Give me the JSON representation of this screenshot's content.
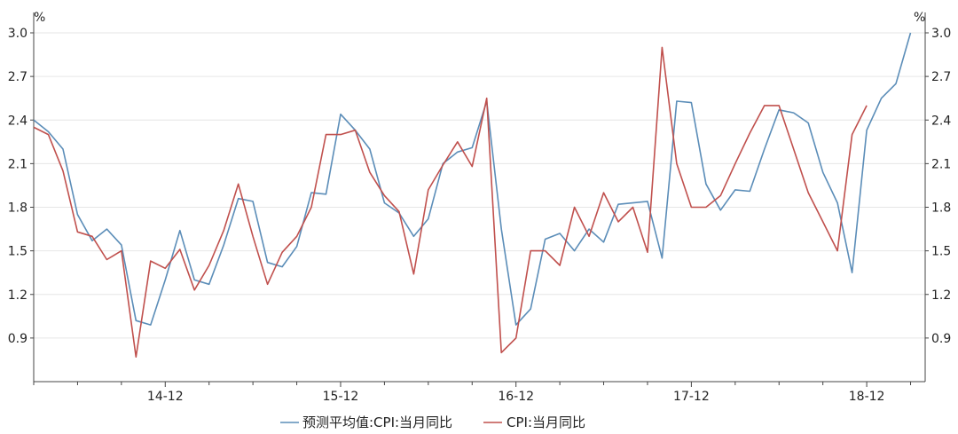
{
  "chart_data": {
    "type": "line",
    "title": "",
    "left_unit": "%",
    "right_unit": "%",
    "ylim": [
      0.6,
      3.0
    ],
    "yticks": [
      0.9,
      1.2,
      1.5,
      1.8,
      2.1,
      2.4,
      2.7,
      3.0
    ],
    "ytick_labels": [
      "0.9",
      "1.2",
      "1.5",
      "1.8",
      "2.1",
      "2.4",
      "2.7",
      "3.0"
    ],
    "x_start": "2014-03",
    "x_end": "2019-04",
    "xtick_labels": [
      "14-12",
      "15-12",
      "16-12",
      "17-12",
      "18-12"
    ],
    "xtick_months": [
      "2014-12",
      "2015-12",
      "2016-12",
      "2017-12",
      "2018-12"
    ],
    "grid": true,
    "legend_position": "bottom",
    "series": [
      {
        "name": "预测平均值:CPI:当月同比",
        "color": "#5b8db8",
        "months": [
          "2014-03",
          "2014-04",
          "2014-05",
          "2014-06",
          "2014-07",
          "2014-08",
          "2014-09",
          "2014-10",
          "2014-11",
          "2014-12",
          "2015-01",
          "2015-02",
          "2015-03",
          "2015-04",
          "2015-05",
          "2015-06",
          "2015-07",
          "2015-08",
          "2015-09",
          "2015-10",
          "2015-11",
          "2015-12",
          "2016-01",
          "2016-02",
          "2016-03",
          "2016-04",
          "2016-05",
          "2016-06",
          "2016-07",
          "2016-08",
          "2016-09",
          "2016-10",
          "2016-11",
          "2016-12",
          "2017-01",
          "2017-02",
          "2017-03",
          "2017-04",
          "2017-05",
          "2017-06",
          "2017-07",
          "2017-08",
          "2017-09",
          "2017-10",
          "2017-11",
          "2017-12",
          "2018-01",
          "2018-02",
          "2018-03",
          "2018-04",
          "2018-05",
          "2018-06",
          "2018-07",
          "2018-08",
          "2018-09",
          "2018-10",
          "2018-11",
          "2018-12",
          "2019-01",
          "2019-02",
          "2019-03",
          "2019-04"
        ],
        "values": [
          2.4,
          2.32,
          2.2,
          1.75,
          1.57,
          1.65,
          1.54,
          1.02,
          0.99,
          1.3,
          1.64,
          1.3,
          1.27,
          1.54,
          1.86,
          1.84,
          1.42,
          1.39,
          1.53,
          1.9,
          1.89,
          2.44,
          2.33,
          2.2,
          1.83,
          1.76,
          1.6,
          1.72,
          2.1,
          2.18,
          2.21,
          2.53,
          1.65,
          0.99,
          1.1,
          1.58,
          1.62,
          1.5,
          1.65,
          1.56,
          1.82,
          1.83,
          1.84,
          1.45,
          2.53,
          2.52,
          1.96,
          1.78,
          1.92,
          1.91,
          2.2,
          2.47,
          2.45,
          2.38,
          2.04,
          1.83,
          1.35,
          2.33,
          2.55,
          2.65,
          3.0,
          null
        ]
      },
      {
        "name": "CPI:当月同比",
        "color": "#c0504d",
        "months": [
          "2014-03",
          "2014-04",
          "2014-05",
          "2014-06",
          "2014-07",
          "2014-08",
          "2014-09",
          "2014-10",
          "2014-11",
          "2014-12",
          "2015-01",
          "2015-02",
          "2015-03",
          "2015-04",
          "2015-05",
          "2015-06",
          "2015-07",
          "2015-08",
          "2015-09",
          "2015-10",
          "2015-11",
          "2015-12",
          "2016-01",
          "2016-02",
          "2016-03",
          "2016-04",
          "2016-05",
          "2016-06",
          "2016-07",
          "2016-08",
          "2016-09",
          "2016-10",
          "2016-11",
          "2016-12",
          "2017-01",
          "2017-02",
          "2017-03",
          "2017-04",
          "2017-05",
          "2017-06",
          "2017-07",
          "2017-08",
          "2017-09",
          "2017-10",
          "2017-11",
          "2017-12",
          "2018-01",
          "2018-02",
          "2018-03",
          "2018-04",
          "2018-05",
          "2018-06",
          "2018-07",
          "2018-08",
          "2018-09",
          "2018-10",
          "2018-11",
          "2018-12",
          "2019-01",
          "2019-02",
          "2019-03",
          "2019-04"
        ],
        "values": [
          2.35,
          2.3,
          2.05,
          1.63,
          1.6,
          1.44,
          1.5,
          0.77,
          1.43,
          1.38,
          1.51,
          1.23,
          1.4,
          1.64,
          1.96,
          1.6,
          1.27,
          1.49,
          1.6,
          1.8,
          2.3,
          2.3,
          2.33,
          2.04,
          1.88,
          1.77,
          1.34,
          1.92,
          2.09,
          2.25,
          2.08,
          2.55,
          0.8,
          0.9,
          1.5,
          1.5,
          1.4,
          1.8,
          1.6,
          1.9,
          1.7,
          1.8,
          1.49,
          2.9,
          2.1,
          1.8,
          1.8,
          1.88,
          2.1,
          2.31,
          2.5,
          2.5,
          2.2,
          1.9,
          1.7,
          1.5,
          2.3,
          2.5,
          null,
          null,
          null,
          null
        ]
      }
    ]
  }
}
